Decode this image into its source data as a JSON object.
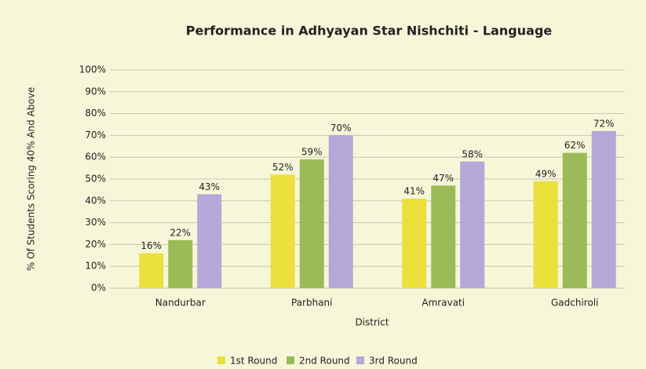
{
  "chart_data": {
    "type": "bar",
    "title": "Performance in Adhyayan Star Nishchiti - Language",
    "x_label": "District",
    "y_label": "% Of Students Scoring 40% And Above",
    "categories": [
      "Nandurbar",
      "Parbhani",
      "Amravati",
      "Gadchiroli"
    ],
    "series": [
      {
        "name": "1st Round",
        "color": "#ebe03c",
        "values": [
          16,
          52,
          41,
          49
        ],
        "value_labels": [
          "16%",
          "52%",
          "41%",
          "49%"
        ]
      },
      {
        "name": "2nd Round",
        "color": "#9bbb59",
        "values": [
          22,
          59,
          47,
          62
        ],
        "value_labels": [
          "22%",
          "59%",
          "47%",
          "62%"
        ]
      },
      {
        "name": "3rd Round",
        "color": "#b3a8d8",
        "values": [
          43,
          70,
          58,
          72
        ],
        "value_labels": [
          "43%",
          "70%",
          "58%",
          "72%"
        ]
      }
    ],
    "ylim": [
      0,
      100
    ],
    "yticks": [
      {
        "value": 0,
        "label": "0%"
      },
      {
        "value": 10,
        "label": "10%"
      },
      {
        "value": 20,
        "label": "20%"
      },
      {
        "value": 30,
        "label": "30%"
      },
      {
        "value": 40,
        "label": "40%"
      },
      {
        "value": 50,
        "label": "50%"
      },
      {
        "value": 60,
        "label": "60%"
      },
      {
        "value": 70,
        "label": "70%"
      },
      {
        "value": 80,
        "label": "80%"
      },
      {
        "value": 90,
        "label": "90%"
      },
      {
        "value": 100,
        "label": "100%"
      }
    ],
    "grid": true,
    "legend": "bottom"
  }
}
